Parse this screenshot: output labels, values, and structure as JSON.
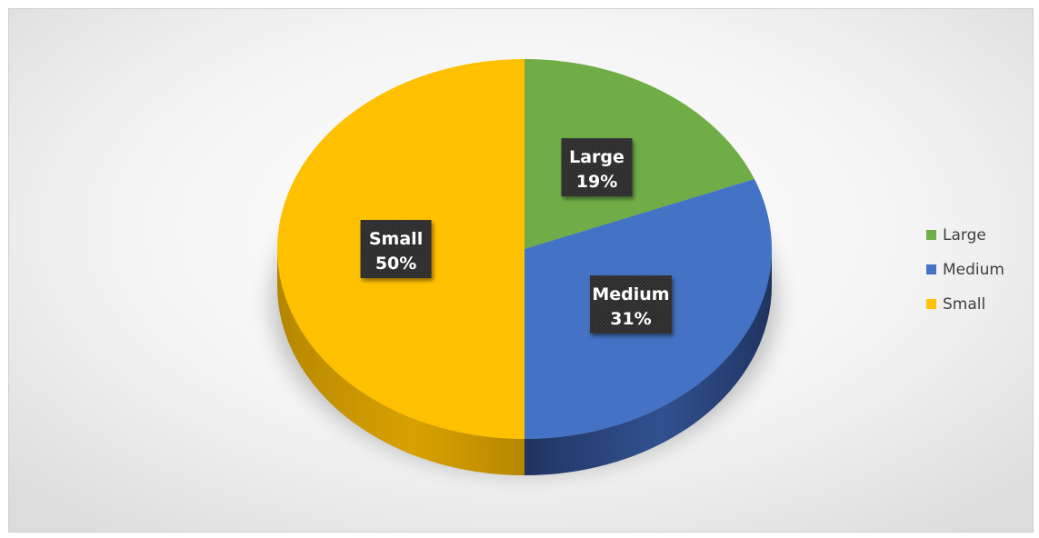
{
  "chart_data": {
    "type": "pie",
    "title": "",
    "categories": [
      "Large",
      "Medium",
      "Small"
    ],
    "values": [
      19,
      31,
      50
    ],
    "value_labels": [
      "19%",
      "31%",
      "50%"
    ],
    "colors": [
      "#70AD47",
      "#4472C4",
      "#FFC000"
    ],
    "side_colors": [
      "#3f6e27",
      "#1f3360",
      "#b58600"
    ],
    "three_d": true,
    "legend": "right",
    "start_angle_deg": 0,
    "direction": "clockwise"
  }
}
